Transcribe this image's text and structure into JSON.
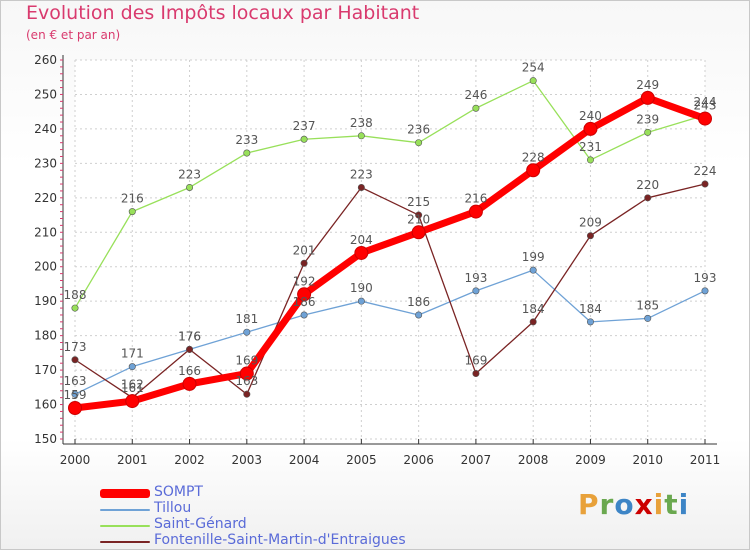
{
  "header": {
    "title": "Evolution des Impôts locaux par Habitant",
    "subtitle": "(en € et par an)"
  },
  "logo": {
    "letters": [
      "P",
      "r",
      "o",
      "x",
      "i",
      "t",
      "i"
    ],
    "colors": [
      "#e8a13a",
      "#6aa84f",
      "#3d85c6",
      "#cc0000",
      "#e8a13a",
      "#6aa84f",
      "#3d85c6"
    ]
  },
  "chart_data": {
    "type": "line",
    "title": "Evolution des Impôts locaux par Habitant",
    "subtitle": "(en € et par an)",
    "xlabel": "",
    "ylabel": "",
    "x": [
      "2000",
      "2001",
      "2002",
      "2003",
      "2004",
      "2005",
      "2006",
      "2007",
      "2008",
      "2009",
      "2010",
      "2011"
    ],
    "ylim": [
      150,
      260
    ],
    "yticks": [
      "150",
      "160",
      "170",
      "180",
      "190",
      "200",
      "210",
      "220",
      "230",
      "240",
      "250",
      "260"
    ],
    "grid": true,
    "legend_position": "bottom-left",
    "series": [
      {
        "name": "SOMPT",
        "color": "#ff0000",
        "width": 7,
        "values": [
          159,
          161,
          166,
          169,
          192,
          204,
          210,
          216,
          228,
          240,
          249,
          243
        ],
        "labels": [
          "159",
          "161",
          "166",
          "169",
          "192",
          "204",
          "210",
          "216",
          "228",
          "240",
          "249",
          "243"
        ]
      },
      {
        "name": "Tillou",
        "color": "#6fa2d6",
        "width": 1.3,
        "values": [
          163,
          171,
          176,
          181,
          186,
          190,
          186,
          193,
          199,
          184,
          185,
          193
        ],
        "labels": [
          "163",
          "171",
          "176",
          "181",
          "186",
          "190",
          "186",
          "193",
          "199",
          "184",
          "185",
          "193"
        ]
      },
      {
        "name": "Saint-Génard",
        "color": "#98e05a",
        "width": 1.3,
        "values": [
          188,
          216,
          223,
          233,
          237,
          238,
          236,
          246,
          254,
          231,
          239,
          244
        ],
        "labels": [
          "188",
          "216",
          "223",
          "233",
          "237",
          "238",
          "236",
          "246",
          "254",
          "231",
          "239",
          "244"
        ]
      },
      {
        "name": "Fontenille-Saint-Martin-d'Entraigues",
        "color": "#7a2424",
        "width": 1.3,
        "values": [
          173,
          162,
          176,
          163,
          201,
          223,
          215,
          169,
          184,
          209,
          220,
          224
        ],
        "labels": [
          "173",
          "162",
          "176",
          "163",
          "201",
          "223",
          "215",
          "169",
          "184",
          "209",
          "220",
          "224"
        ]
      }
    ]
  }
}
